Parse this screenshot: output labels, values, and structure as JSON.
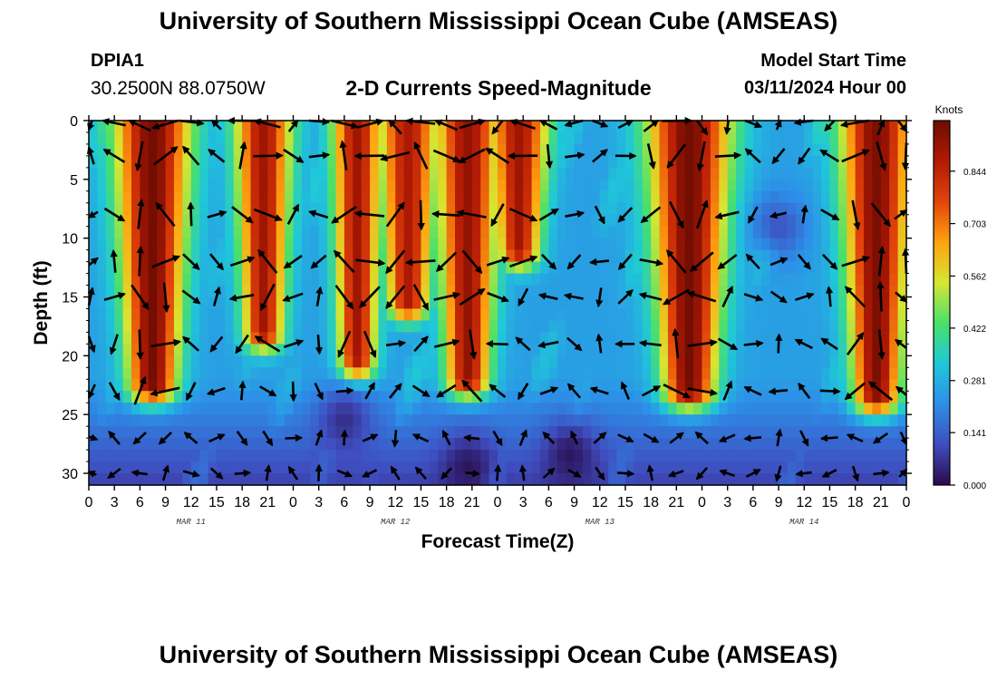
{
  "header": {
    "title": "University of Southern Mississippi Ocean Cube (AMSEAS)",
    "station": "DPIA1",
    "coordinates": "30.2500N  88.0750W",
    "chart_title": "2-D Currents Speed-Magnitude",
    "model_start_label": "Model Start Time",
    "model_start_value": "03/11/2024 Hour 00"
  },
  "footer": {
    "title": "University of Southern Mississippi Ocean Cube (AMSEAS)"
  },
  "chart_data": {
    "type": "heatmap",
    "title": "2-D Currents Speed-Magnitude",
    "xlabel": "Forecast Time(Z)",
    "ylabel": "Depth (ft)",
    "x_ticks": [
      "0",
      "3",
      "6",
      "9",
      "12",
      "15",
      "18",
      "21",
      "0",
      "3",
      "6",
      "9",
      "12",
      "15",
      "18",
      "21",
      "0",
      "3",
      "6",
      "9",
      "12",
      "15",
      "18",
      "21",
      "0",
      "3",
      "6",
      "9",
      "12",
      "15",
      "18",
      "21",
      "0"
    ],
    "x_range_hours": [
      0,
      96
    ],
    "day_labels": [
      {
        "label": "MAR 11",
        "hour": 12
      },
      {
        "label": "MAR 12",
        "hour": 36
      },
      {
        "label": "MAR 13",
        "hour": 60
      },
      {
        "label": "MAR 14",
        "hour": 84
      }
    ],
    "y_ticks": [
      0,
      5,
      10,
      15,
      20,
      25,
      30
    ],
    "y_range_ft": [
      0,
      31
    ],
    "y_inverted": true,
    "colorbar": {
      "title": "Knots",
      "ticks": [
        "0.000",
        "0.141",
        "0.281",
        "0.422",
        "0.562",
        "0.703",
        "0.844"
      ],
      "range": [
        0,
        0.98
      ],
      "colors": [
        "#2a0a4a",
        "#3f4dbf",
        "#2d8ee8",
        "#1fc8d8",
        "#49e06a",
        "#d6e632",
        "#ffa10f",
        "#e2440a",
        "#b21a04",
        "#6e0c02"
      ]
    },
    "strong_current_bands": [
      {
        "center_hour": 7.5,
        "half_width": 3.5,
        "bottom_ft": 22.5,
        "peak": 0.97
      },
      {
        "center_hour": 20.5,
        "half_width": 2.2,
        "bottom_ft": 18.0,
        "peak": 0.9
      },
      {
        "center_hour": 31.5,
        "half_width": 1.7,
        "bottom_ft": 20.5,
        "peak": 0.9
      },
      {
        "center_hour": 37.5,
        "half_width": 2.5,
        "bottom_ft": 15.5,
        "peak": 0.88
      },
      {
        "center_hour": 44.5,
        "half_width": 2.7,
        "bottom_ft": 22.0,
        "peak": 0.92
      },
      {
        "center_hour": 50.5,
        "half_width": 2.4,
        "bottom_ft": 11.0,
        "peak": 0.9
      },
      {
        "center_hour": 70.5,
        "half_width": 4.0,
        "bottom_ft": 23.0,
        "peak": 0.97
      },
      {
        "center_hour": 92.5,
        "half_width": 3.2,
        "bottom_ft": 23.5,
        "peak": 0.96
      }
    ],
    "low_current_zones": [
      {
        "center_hour": 44.5,
        "center_ft": 29.5,
        "value": 0.02
      },
      {
        "center_hour": 56.5,
        "center_ft": 28.5,
        "value": 0.02
      },
      {
        "center_hour": 81.0,
        "center_ft": 9.0,
        "value": 0.12
      },
      {
        "center_hour": 30.0,
        "center_ft": 25.5,
        "value": 0.06
      }
    ],
    "vector_grid": {
      "hours_step": 3,
      "depths_ft": [
        0,
        3,
        8,
        12,
        15,
        19,
        23,
        27,
        30
      ]
    }
  }
}
